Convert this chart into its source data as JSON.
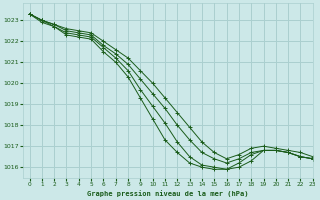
{
  "title": "Graphe pression niveau de la mer (hPa)",
  "bg_color": "#cce8e8",
  "grid_color": "#aacfcf",
  "line_color": "#1a5c1a",
  "xlim": [
    -0.5,
    23
  ],
  "ylim": [
    1015.5,
    1023.8
  ],
  "yticks": [
    1016,
    1017,
    1018,
    1019,
    1020,
    1021,
    1022,
    1023
  ],
  "xticks": [
    0,
    1,
    2,
    3,
    4,
    5,
    6,
    7,
    8,
    9,
    10,
    11,
    12,
    13,
    14,
    15,
    16,
    17,
    18,
    19,
    20,
    21,
    22,
    23
  ],
  "series": [
    [
      1023.3,
      1023.0,
      1022.8,
      1022.6,
      1022.5,
      1022.4,
      1022.0,
      1021.6,
      1021.2,
      1020.6,
      1020.0,
      1019.3,
      1018.6,
      1017.9,
      1017.2,
      1016.7,
      1016.4,
      1016.6,
      1016.9,
      1017.0,
      1016.9,
      1016.8,
      1016.7,
      1016.5
    ],
    [
      1023.3,
      1023.0,
      1022.8,
      1022.5,
      1022.4,
      1022.3,
      1021.8,
      1021.4,
      1020.9,
      1020.2,
      1019.5,
      1018.8,
      1018.0,
      1017.3,
      1016.7,
      1016.4,
      1016.2,
      1016.4,
      1016.7,
      1016.8,
      1016.8,
      1016.7,
      1016.5,
      1016.4
    ],
    [
      1023.3,
      1023.0,
      1022.7,
      1022.4,
      1022.3,
      1022.2,
      1021.7,
      1021.2,
      1020.6,
      1019.7,
      1018.9,
      1018.1,
      1017.2,
      1016.5,
      1016.1,
      1016.0,
      1015.9,
      1016.2,
      1016.6,
      1016.8,
      1016.8,
      1016.7,
      1016.5,
      1016.4
    ],
    [
      1023.3,
      1022.9,
      1022.7,
      1022.3,
      1022.2,
      1022.1,
      1021.5,
      1021.0,
      1020.3,
      1019.3,
      1018.3,
      1017.3,
      1016.7,
      1016.2,
      1016.0,
      1015.9,
      1015.9,
      1016.0,
      1016.3,
      1016.8,
      1016.8,
      1016.7,
      1016.5,
      1016.4
    ]
  ]
}
